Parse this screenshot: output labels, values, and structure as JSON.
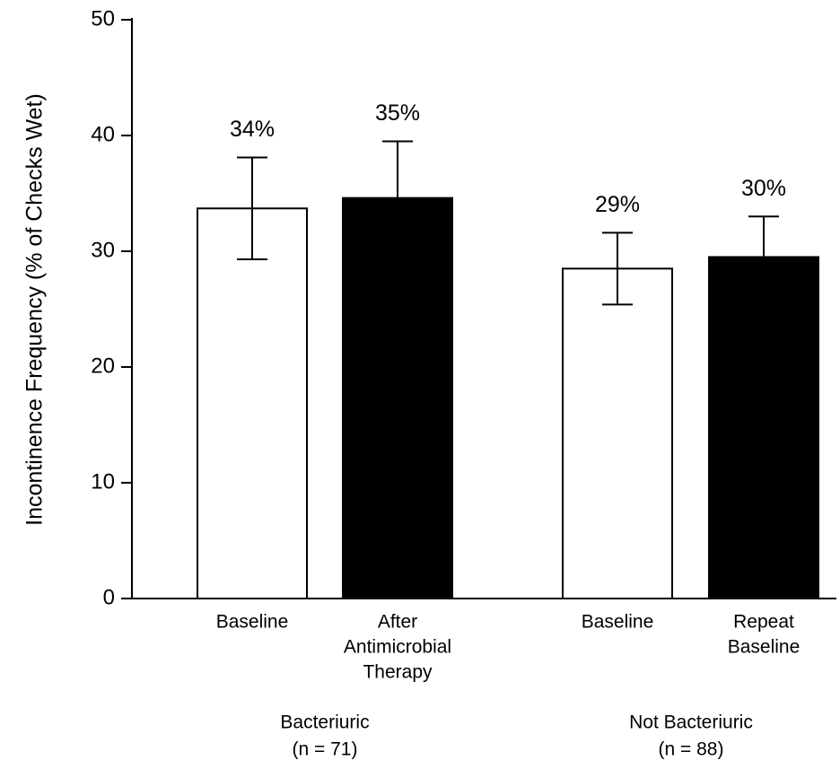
{
  "chart_data": {
    "type": "bar",
    "ylabel": "Incontinence Frequency (% of Checks Wet)",
    "categories": [
      [
        "Baseline"
      ],
      [
        "After",
        "Antimicrobial",
        "Therapy"
      ],
      [
        "Baseline"
      ],
      [
        "Repeat",
        "Baseline"
      ]
    ],
    "values": [
      33.7,
      34.6,
      28.5,
      29.5
    ],
    "value_labels": [
      "34%",
      "35%",
      "29%",
      "30%"
    ],
    "errors": [
      4.4,
      4.9,
      3.1,
      3.5
    ],
    "colors": [
      "#ffffff",
      "#000000",
      "#ffffff",
      "#000000"
    ],
    "groups": [
      {
        "name": "Bacteriuric",
        "n": "(n = 71)"
      },
      {
        "name": "Not Bacteriuric",
        "n": "(n = 88)"
      }
    ],
    "ylim": [
      0,
      50
    ],
    "yticks": [
      0,
      10,
      20,
      30,
      40,
      50
    ]
  }
}
